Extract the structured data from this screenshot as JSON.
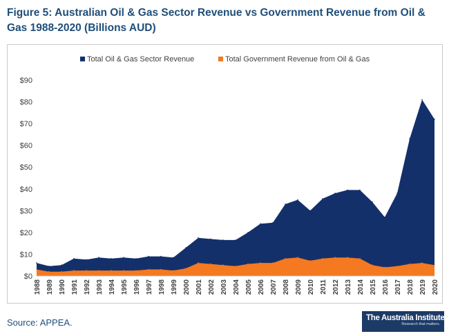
{
  "title": "Figure 5: Australian Oil & Gas Sector Revenue vs Government Revenue from Oil & Gas 1988-2020 (Billions AUD)",
  "source": "Source: APPEA.",
  "logo": {
    "main": "The Australia Institute",
    "sub": "Research that matters."
  },
  "chart_data": {
    "type": "area",
    "x": [
      "1988",
      "1989",
      "1990",
      "1991",
      "1992",
      "1993",
      "1994",
      "1995",
      "1996",
      "1997",
      "1998",
      "1999",
      "2000",
      "2001",
      "2002",
      "2003",
      "2004",
      "2005",
      "2006",
      "2007",
      "2008",
      "2009",
      "2010",
      "2011",
      "2012",
      "2013",
      "2014",
      "2015",
      "2016",
      "2017",
      "2018",
      "2019",
      "2020"
    ],
    "series": [
      {
        "name": "Total Oil & Gas Sector Revenue",
        "color": "#13306b",
        "values": [
          6,
          4.5,
          5,
          8,
          7.5,
          8.5,
          8,
          8.5,
          8,
          9,
          9,
          8.5,
          13,
          17.5,
          17,
          16.5,
          16.5,
          20,
          24,
          24.5,
          33,
          35,
          30,
          35.5,
          38,
          39.5,
          39.5,
          34,
          27,
          38,
          63,
          81,
          72
        ]
      },
      {
        "name": "Total Government Revenue from Oil & Gas",
        "color": "#f47920",
        "values": [
          3,
          2,
          2,
          2.5,
          2.5,
          2.5,
          2.5,
          2.5,
          2.5,
          3,
          3,
          2.5,
          3.5,
          6,
          5.5,
          5,
          4.5,
          5.5,
          6,
          6,
          8,
          8.5,
          7,
          8,
          8.5,
          8.5,
          8,
          5,
          4,
          4.5,
          5.5,
          6,
          5
        ]
      }
    ],
    "yticks": [
      "$0",
      "$10",
      "$20",
      "$30",
      "$40",
      "$50",
      "$60",
      "$70",
      "$80",
      "$90"
    ],
    "ylim": [
      0,
      90
    ],
    "grid": false,
    "legend": "top"
  }
}
